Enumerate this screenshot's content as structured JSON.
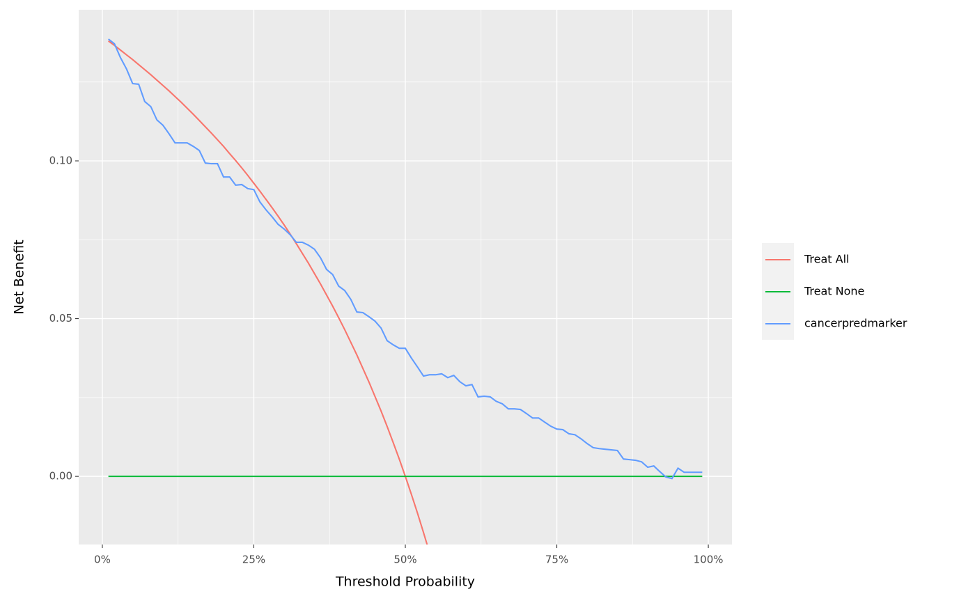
{
  "chart_data": {
    "type": "line",
    "x_label": "Threshold Probability",
    "y_label": "Net Benefit",
    "x": [
      0.01,
      0.02,
      0.03,
      0.04,
      0.05,
      0.06,
      0.07,
      0.08,
      0.09,
      0.1,
      0.11,
      0.12,
      0.13,
      0.14,
      0.15,
      0.16,
      0.17,
      0.18,
      0.19,
      0.2,
      0.21,
      0.22,
      0.23,
      0.24,
      0.25,
      0.26,
      0.27,
      0.28,
      0.29,
      0.3,
      0.31,
      0.32,
      0.33,
      0.34,
      0.35,
      0.36,
      0.37,
      0.38,
      0.39,
      0.4,
      0.41,
      0.42,
      0.43,
      0.44,
      0.45,
      0.46,
      0.47,
      0.48,
      0.49,
      0.5,
      0.51,
      0.52,
      0.53,
      0.54,
      0.55,
      0.56,
      0.57,
      0.58,
      0.59,
      0.6,
      0.61,
      0.62,
      0.63,
      0.64,
      0.65,
      0.66,
      0.67,
      0.68,
      0.69,
      0.7,
      0.71,
      0.72,
      0.73,
      0.74,
      0.75,
      0.76,
      0.77,
      0.78,
      0.79,
      0.8,
      0.81,
      0.82,
      0.83,
      0.84,
      0.85,
      0.86,
      0.87,
      0.88,
      0.89,
      0.9,
      0.91,
      0.92,
      0.93,
      0.94,
      0.95,
      0.96,
      0.97,
      0.98,
      0.99
    ],
    "series": [
      {
        "name": "Treat All",
        "color": "#F8766D",
        "values": [
          0.138,
          0.1366,
          0.1351,
          0.1336,
          0.1321,
          0.1305,
          0.1289,
          0.1273,
          0.1256,
          0.1239,
          0.1222,
          0.1204,
          0.1186,
          0.1167,
          0.1148,
          0.1128,
          0.1108,
          0.1088,
          0.1067,
          0.1046,
          0.1023,
          0.1001,
          0.0978,
          0.0954,
          0.0929,
          0.0904,
          0.0878,
          0.0852,
          0.0825,
          0.0797,
          0.0768,
          0.0738,
          0.0707,
          0.0676,
          0.0643,
          0.061,
          0.0575,
          0.054,
          0.0503,
          0.0465,
          0.0425,
          0.0385,
          0.0342,
          0.0299,
          0.0253,
          0.0207,
          0.0158,
          0.0107,
          0.0055,
          0,
          -0.0057,
          -0.0116,
          -0.0178,
          -0.0242,
          null,
          null,
          null,
          null,
          null,
          null,
          null,
          null,
          null,
          null,
          null,
          null,
          null,
          null,
          null,
          null,
          null,
          null,
          null,
          null,
          null,
          null,
          null,
          null,
          null,
          null,
          null,
          null,
          null,
          null,
          null,
          null,
          null,
          null,
          null,
          null,
          null,
          null,
          null,
          null,
          null,
          null,
          null,
          null,
          null
        ]
      },
      {
        "name": "Treat None",
        "color": "#00BA38",
        "values": [
          0,
          0,
          0,
          0,
          0,
          0,
          0,
          0,
          0,
          0,
          0,
          0,
          0,
          0,
          0,
          0,
          0,
          0,
          0,
          0,
          0,
          0,
          0,
          0,
          0,
          0,
          0,
          0,
          0,
          0,
          0,
          0,
          0,
          0,
          0,
          0,
          0,
          0,
          0,
          0,
          0,
          0,
          0,
          0,
          0,
          0,
          0,
          0,
          0,
          0,
          0,
          0,
          0,
          0,
          0,
          0,
          0,
          0,
          0,
          0,
          0,
          0,
          0,
          0,
          0,
          0,
          0,
          0,
          0,
          0,
          0,
          0,
          0,
          0,
          0,
          0,
          0,
          0,
          0,
          0,
          0,
          0,
          0,
          0,
          0,
          0,
          0,
          0,
          0,
          0,
          0,
          0,
          0,
          0,
          0,
          0,
          0,
          0,
          0
        ]
      },
      {
        "name": "cancerpredmarker",
        "color": "#619CFF",
        "values": [
          0.1386,
          0.1371,
          0.1327,
          0.1291,
          0.1245,
          0.1243,
          0.1188,
          0.1172,
          0.113,
          0.1113,
          0.1086,
          0.1057,
          0.1057,
          0.1057,
          0.1046,
          0.1033,
          0.0993,
          0.0991,
          0.0991,
          0.0949,
          0.0949,
          0.0923,
          0.0925,
          0.0912,
          0.0909,
          0.087,
          0.0845,
          0.0823,
          0.0799,
          0.0784,
          0.0766,
          0.0742,
          0.0742,
          0.0733,
          0.072,
          0.0693,
          0.0656,
          0.064,
          0.0603,
          0.0589,
          0.0561,
          0.0521,
          0.0519,
          0.0506,
          0.0492,
          0.047,
          0.043,
          0.0417,
          0.0406,
          0.0406,
          0.0375,
          0.0347,
          0.0318,
          0.0322,
          0.0322,
          0.0325,
          0.0313,
          0.032,
          0.03,
          0.0287,
          0.0291,
          0.0252,
          0.0254,
          0.0252,
          0.0238,
          0.023,
          0.0214,
          0.0214,
          0.0212,
          0.0199,
          0.0185,
          0.0185,
          0.0172,
          0.0159,
          0.015,
          0.0148,
          0.0135,
          0.0132,
          0.0119,
          0.0104,
          0.0091,
          0.0088,
          0.0086,
          0.0084,
          0.0082,
          0.0055,
          0.0053,
          0.0051,
          0.0046,
          0.0029,
          0.0033,
          0.0015,
          -0.0002,
          -0.0007,
          0.0026,
          0.0013,
          0.0013,
          0.0013,
          0.0013
        ]
      }
    ],
    "xlim": [
      -0.039,
      1.039
    ],
    "ylim": [
      -0.0216,
      0.1479
    ],
    "xticks": [
      {
        "value": 0,
        "label": "0%"
      },
      {
        "value": 0.25,
        "label": "25%"
      },
      {
        "value": 0.5,
        "label": "50%"
      },
      {
        "value": 0.75,
        "label": "75%"
      },
      {
        "value": 1,
        "label": "100%"
      }
    ],
    "yticks": [
      {
        "value": 0,
        "label": "0.00"
      },
      {
        "value": 0.05,
        "label": "0.05"
      },
      {
        "value": 0.1,
        "label": "0.10"
      }
    ],
    "grid": true,
    "legend_position": "right"
  }
}
